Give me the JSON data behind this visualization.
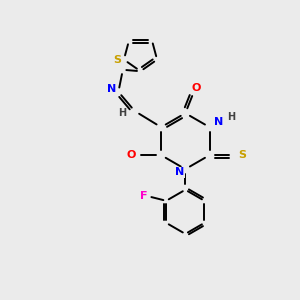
{
  "background_color": "#ebebeb",
  "atom_colors": {
    "S": "#c8a000",
    "N": "#0000ff",
    "O": "#ff0000",
    "F": "#ff00cc",
    "C": "#000000",
    "H": "#404040"
  },
  "bond_color": "#000000",
  "lw": 1.4
}
